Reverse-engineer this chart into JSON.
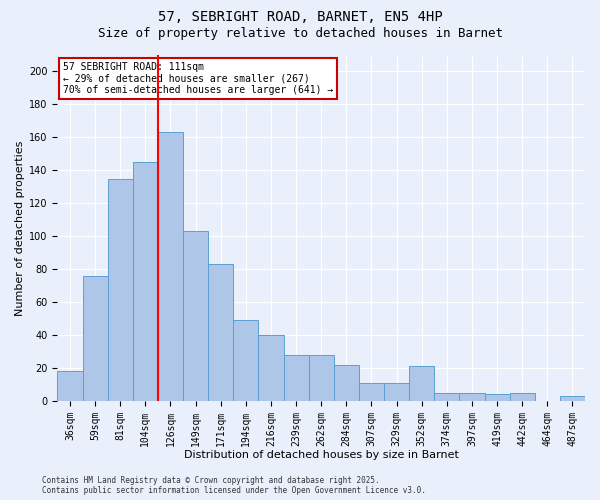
{
  "title": "57, SEBRIGHT ROAD, BARNET, EN5 4HP",
  "subtitle": "Size of property relative to detached houses in Barnet",
  "xlabel": "Distribution of detached houses by size in Barnet",
  "ylabel": "Number of detached properties",
  "categories": [
    "36sqm",
    "59sqm",
    "81sqm",
    "104sqm",
    "126sqm",
    "149sqm",
    "171sqm",
    "194sqm",
    "216sqm",
    "239sqm",
    "262sqm",
    "284sqm",
    "307sqm",
    "329sqm",
    "352sqm",
    "374sqm",
    "397sqm",
    "419sqm",
    "442sqm",
    "464sqm",
    "487sqm"
  ],
  "values": [
    18,
    76,
    135,
    145,
    163,
    103,
    83,
    49,
    40,
    28,
    28,
    22,
    11,
    11,
    21,
    5,
    5,
    4,
    5,
    0,
    3
  ],
  "bar_color": "#aec6e8",
  "bar_edge_color": "#5a9fd4",
  "red_line_x": 3.5,
  "annotation_text": "57 SEBRIGHT ROAD: 111sqm\n← 29% of detached houses are smaller (267)\n70% of semi-detached houses are larger (641) →",
  "annotation_box_color": "#ffffff",
  "annotation_box_edge": "#cc0000",
  "ylim": [
    0,
    210
  ],
  "yticks": [
    0,
    20,
    40,
    60,
    80,
    100,
    120,
    140,
    160,
    180,
    200
  ],
  "background_color": "#eaf0fb",
  "grid_color": "#ffffff",
  "fig_background": "#eaf0fb",
  "footer": "Contains HM Land Registry data © Crown copyright and database right 2025.\nContains public sector information licensed under the Open Government Licence v3.0.",
  "title_fontsize": 10,
  "subtitle_fontsize": 9,
  "xlabel_fontsize": 8,
  "ylabel_fontsize": 8,
  "tick_fontsize": 7,
  "footer_fontsize": 5.5
}
